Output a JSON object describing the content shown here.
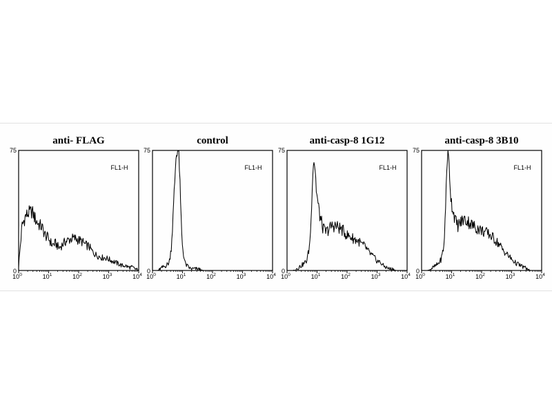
{
  "chart_data": [
    {
      "type": "area",
      "title": "anti- FLAG",
      "annotation": "FL1-H",
      "x_scale": "log",
      "xlim": [
        1,
        10000
      ],
      "ylim": [
        0,
        75
      ],
      "y_ticks": [
        "75",
        "0"
      ],
      "x_ticks": [
        {
          "base": "10",
          "exp": "0"
        },
        {
          "base": "10",
          "exp": "1"
        },
        {
          "base": "10",
          "exp": "2"
        },
        {
          "base": "10",
          "exp": "3"
        },
        {
          "base": "10",
          "exp": "4"
        }
      ],
      "x": [
        1.0,
        1.3,
        1.7,
        2.2,
        2.8,
        3.6,
        4.6,
        6.0,
        7.7,
        10,
        13,
        17,
        22,
        28,
        36,
        46,
        60,
        77,
        100,
        130,
        170,
        220,
        280,
        360,
        460,
        600,
        770,
        1000,
        1300,
        1700,
        2200,
        2800,
        3600,
        4600,
        6000,
        7700,
        10000
      ],
      "y": [
        3,
        28,
        34,
        36,
        37,
        32,
        29,
        27,
        22,
        20,
        16,
        17,
        14,
        16,
        18,
        19,
        20,
        20,
        19,
        18,
        16,
        15,
        12,
        10,
        9,
        8,
        8,
        7,
        6,
        5,
        4,
        3,
        3,
        2,
        2,
        1,
        0
      ]
    },
    {
      "type": "area",
      "title": "control",
      "annotation": "FL1-H",
      "x_scale": "log",
      "xlim": [
        1,
        10000
      ],
      "ylim": [
        0,
        75
      ],
      "y_ticks": [
        "75",
        "0"
      ],
      "x_ticks": [
        {
          "base": "10",
          "exp": "0"
        },
        {
          "base": "10",
          "exp": "1"
        },
        {
          "base": "10",
          "exp": "2"
        },
        {
          "base": "10",
          "exp": "3"
        },
        {
          "base": "10",
          "exp": "4"
        }
      ],
      "x": [
        1.0,
        1.5,
        2.2,
        2.8,
        3.6,
        4.2,
        4.8,
        5.4,
        6.0,
        6.6,
        7.2,
        7.8,
        8.4,
        9.0,
        9.6,
        10.5,
        11.5,
        12.5,
        14,
        16,
        19,
        24,
        32,
        50,
        100,
        200,
        500,
        1000,
        2000,
        5000,
        10000
      ],
      "y": [
        0,
        0,
        2,
        3,
        5,
        14,
        32,
        52,
        70,
        75,
        75,
        68,
        48,
        32,
        19,
        12,
        7,
        4,
        3,
        2,
        1,
        1,
        1,
        0,
        0,
        0,
        0,
        0,
        0,
        0,
        0
      ]
    },
    {
      "type": "area",
      "title": "anti-casp-8 1G12",
      "annotation": "FL1-H",
      "x_scale": "log",
      "xlim": [
        1,
        10000
      ],
      "ylim": [
        0,
        75
      ],
      "y_ticks": [
        "75",
        "0"
      ],
      "x_ticks": [
        {
          "base": "10",
          "exp": "0"
        },
        {
          "base": "10",
          "exp": "1"
        },
        {
          "base": "10",
          "exp": "2"
        },
        {
          "base": "10",
          "exp": "3"
        },
        {
          "base": "10",
          "exp": "4"
        }
      ],
      "x": [
        1.0,
        1.6,
        2.5,
        3.5,
        4.5,
        5.5,
        6.3,
        7.0,
        7.8,
        8.6,
        9.5,
        11,
        12.5,
        14,
        16,
        20,
        25,
        32,
        40,
        50,
        63,
        80,
        100,
        130,
        160,
        200,
        250,
        320,
        400,
        500,
        630,
        800,
        1000,
        1300,
        1600,
        2000,
        2600,
        3300,
        4200,
        10000
      ],
      "y": [
        0,
        0,
        2,
        4,
        6,
        14,
        30,
        58,
        70,
        64,
        50,
        40,
        34,
        30,
        26,
        24,
        26,
        28,
        28,
        27,
        26,
        24,
        22,
        21,
        20,
        19,
        18,
        16,
        15,
        12,
        10,
        8,
        6,
        5,
        3,
        2,
        1,
        1,
        0,
        0
      ]
    },
    {
      "type": "area",
      "title": "anti-casp-8 3B10",
      "annotation": "FL1-H",
      "x_scale": "log",
      "xlim": [
        1,
        10000
      ],
      "ylim": [
        0,
        75
      ],
      "y_ticks": [
        "75",
        "0"
      ],
      "x_ticks": [
        {
          "base": "10",
          "exp": "0"
        },
        {
          "base": "10",
          "exp": "1"
        },
        {
          "base": "10",
          "exp": "2"
        },
        {
          "base": "10",
          "exp": "3"
        },
        {
          "base": "10",
          "exp": "4"
        }
      ],
      "x": [
        1.0,
        1.6,
        2.5,
        3.5,
        4.5,
        5.5,
        6.2,
        6.8,
        7.4,
        8.0,
        8.8,
        9.6,
        11,
        12.5,
        14,
        16,
        20,
        25,
        32,
        40,
        50,
        63,
        80,
        100,
        130,
        160,
        200,
        250,
        320,
        400,
        500,
        630,
        800,
        1000,
        1300,
        1600,
        2000,
        2600,
        3300,
        4200,
        10000
      ],
      "y": [
        0,
        0,
        2,
        4,
        7,
        15,
        34,
        62,
        74,
        70,
        56,
        44,
        38,
        34,
        30,
        28,
        30,
        32,
        31,
        30,
        28,
        27,
        26,
        25,
        24,
        23,
        22,
        20,
        18,
        16,
        13,
        11,
        9,
        7,
        5,
        4,
        3,
        2,
        1,
        0,
        0
      ]
    }
  ]
}
